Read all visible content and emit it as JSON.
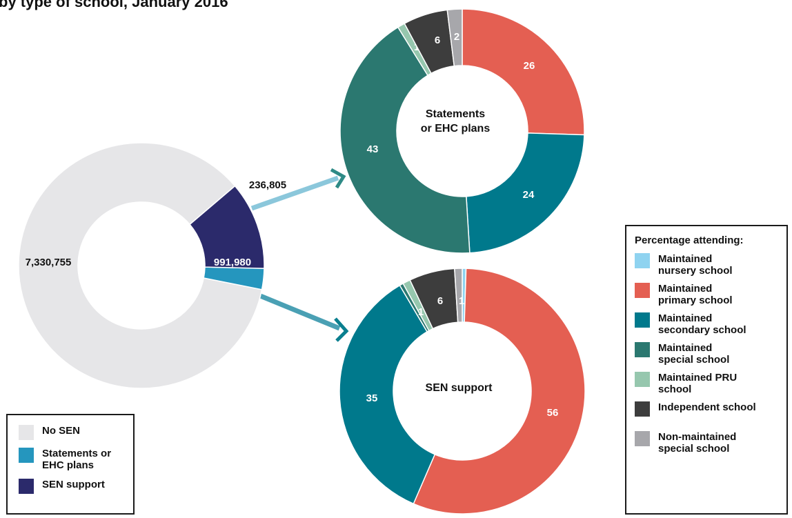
{
  "header": {
    "title_fragment": "by type of school, January 2016"
  },
  "chart_data": [
    {
      "type": "pie",
      "name": "overall",
      "title": "",
      "slices": [
        {
          "label": "No SEN",
          "value": 7330755,
          "display": "7,330,755",
          "color": "#e6e6e8"
        },
        {
          "label": "Statements or EHC plans",
          "value": 236805,
          "display": "236,805",
          "color": "#2596be"
        },
        {
          "label": "SEN support",
          "value": 991980,
          "display": "991,980",
          "color": "#2b2a6b"
        }
      ]
    },
    {
      "type": "pie",
      "name": "statements",
      "title": "Statements\nor EHC plans",
      "slices": [
        {
          "label": "Maintained primary school",
          "value": 26,
          "display": "26",
          "color": "#e45f52"
        },
        {
          "label": "Maintained secondary school",
          "value": 24,
          "display": "24",
          "color": "#00798c"
        },
        {
          "label": "Maintained special school",
          "value": 43,
          "display": "43",
          "color": "#2b7870"
        },
        {
          "label": "Maintained PRU school",
          "value": 1,
          "display": "1",
          "color": "#96c7ae"
        },
        {
          "label": "Independent school",
          "value": 6,
          "display": "6",
          "color": "#3d3d3d"
        },
        {
          "label": "Non-maintained special school",
          "value": 2,
          "display": "2",
          "color": "#a7a7ab"
        }
      ]
    },
    {
      "type": "pie",
      "name": "sensupport",
      "title": "SEN support",
      "slices": [
        {
          "label": "Maintained nursery school",
          "value": 0.5,
          "display": "",
          "color": "#8fd3f0"
        },
        {
          "label": "Maintained primary school",
          "value": 56,
          "display": "56",
          "color": "#e45f52"
        },
        {
          "label": "Maintained secondary school",
          "value": 35,
          "display": "35",
          "color": "#00798c"
        },
        {
          "label": "Maintained special school",
          "value": 0.5,
          "display": "",
          "color": "#2b7870"
        },
        {
          "label": "Maintained PRU school",
          "value": 1,
          "display": "1",
          "color": "#96c7ae"
        },
        {
          "label": "Independent school",
          "value": 6,
          "display": "6",
          "color": "#3d3d3d"
        },
        {
          "label": "Non-maintained special school",
          "value": 1,
          "display": "1",
          "color": "#a7a7ab"
        }
      ]
    }
  ],
  "legend_left": [
    {
      "label": "No SEN",
      "color": "#e6e6e8"
    },
    {
      "label": "Statements or\nEHC plans",
      "color": "#2596be"
    },
    {
      "label": "SEN support",
      "color": "#2b2a6b"
    }
  ],
  "legend_right": {
    "title": "Percentage attending:",
    "items": [
      {
        "label": "Maintained\nnursery school",
        "color": "#8fd3f0"
      },
      {
        "label": "Maintained\nprimary school",
        "color": "#e45f52"
      },
      {
        "label": "Maintained\nsecondary school",
        "color": "#00798c"
      },
      {
        "label": "Maintained\nspecial school",
        "color": "#2b7870"
      },
      {
        "label": "Maintained PRU\nschool",
        "color": "#96c7ae"
      },
      {
        "label": "Independent school",
        "color": "#3d3d3d"
      },
      {
        "label": "Non-maintained\nspecial school",
        "color": "#a7a7ab"
      }
    ]
  }
}
